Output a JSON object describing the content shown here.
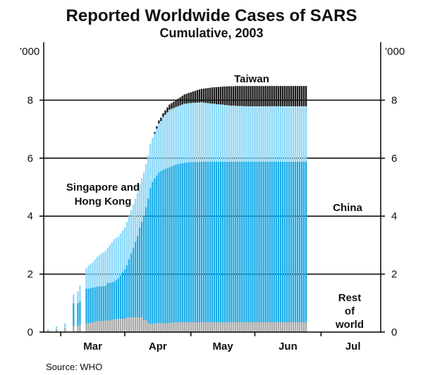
{
  "chart_data": {
    "type": "bar",
    "stacked": true,
    "title": "Reported Worldwide Cases of SARS",
    "subtitle": "Cumulative, 2003",
    "unit_left": "’000",
    "unit_right": "’000",
    "ylim": [
      0,
      10
    ],
    "yticks": [
      0,
      2,
      4,
      6,
      8
    ],
    "ytick_labels": [
      "0",
      "2",
      "4",
      "6",
      "8"
    ],
    "grid": true,
    "x_month_labels": [
      "Mar",
      "Apr",
      "May",
      "Jun",
      "Jul"
    ],
    "x_month_day_index": [
      0,
      30,
      61,
      91,
      122
    ],
    "source": "Source: WHO",
    "colors": {
      "rest_of_world": "#aaaaaa",
      "china": "#1aaae6",
      "singapore_hong_kong": "#8ed8f8",
      "taiwan": "#1a1a1a",
      "axis": "#000000"
    },
    "annotations": {
      "taiwan": "Taiwan",
      "singapore_line1": "Singapore and",
      "singapore_line2": "Hong Kong",
      "china": "China",
      "rest_line1": "Rest",
      "rest_line2": "of",
      "rest_line3": "world"
    },
    "series_names": [
      "Rest of world",
      "China",
      "Singapore and Hong Kong",
      "Taiwan"
    ],
    "days": [
      -6,
      -2,
      2,
      6,
      8,
      9,
      12,
      13,
      14,
      15,
      16,
      17,
      18,
      19,
      20,
      21,
      22,
      23,
      24,
      25,
      26,
      27,
      28,
      29,
      30,
      31,
      32,
      33,
      34,
      35,
      36,
      37,
      38,
      39,
      40,
      41,
      42,
      43,
      44,
      45,
      46,
      47,
      48,
      49,
      50,
      51,
      52,
      53,
      54,
      55,
      56,
      57,
      58,
      59,
      60,
      61,
      62,
      63,
      64,
      65,
      66,
      67,
      68,
      69,
      70,
      71,
      72,
      73,
      74,
      75,
      76,
      77,
      78,
      79,
      80,
      81,
      82,
      83,
      84,
      85,
      86,
      87,
      88,
      89,
      90,
      91,
      92,
      93,
      94,
      95,
      96,
      97,
      98,
      99,
      100,
      101,
      102,
      103,
      104,
      105,
      106,
      107,
      108,
      109,
      110,
      111,
      112,
      113,
      114,
      115
    ],
    "totals": [
      0.1,
      0.2,
      0.3,
      1.3,
      1.4,
      1.6,
      2.2,
      2.3,
      2.35,
      2.4,
      2.5,
      2.6,
      2.65,
      2.7,
      2.75,
      2.8,
      2.9,
      3.0,
      3.1,
      3.2,
      3.25,
      3.3,
      3.4,
      3.5,
      3.6,
      3.8,
      4.0,
      4.2,
      4.4,
      4.6,
      4.8,
      5.1,
      5.3,
      5.5,
      5.8,
      6.1,
      6.5,
      6.7,
      6.9,
      7.1,
      7.3,
      7.4,
      7.55,
      7.65,
      7.75,
      7.85,
      7.9,
      7.95,
      8.0,
      8.05,
      8.1,
      8.15,
      8.2,
      8.22,
      8.25,
      8.27,
      8.3,
      8.32,
      8.35,
      8.37,
      8.39,
      8.4,
      8.41,
      8.42,
      8.43,
      8.44,
      8.45,
      8.45,
      8.46,
      8.46,
      8.47,
      8.47,
      8.48,
      8.48,
      8.48,
      8.48,
      8.49,
      8.49,
      8.49,
      8.49,
      8.49,
      8.49,
      8.49,
      8.49,
      8.49,
      8.49,
      8.49,
      8.49,
      8.49,
      8.49,
      8.49,
      8.49,
      8.49,
      8.49,
      8.49,
      8.49,
      8.49,
      8.49,
      8.49,
      8.49,
      8.49,
      8.49,
      8.49,
      8.49,
      8.49,
      8.49,
      8.49,
      8.49,
      8.49,
      8.49
    ],
    "china_cumulative": [
      0.0,
      0.0,
      0.0,
      0.8,
      0.8,
      0.8,
      1.2,
      1.2,
      1.2,
      1.2,
      1.2,
      1.2,
      1.2,
      1.2,
      1.2,
      1.2,
      1.3,
      1.3,
      1.3,
      1.3,
      1.35,
      1.4,
      1.5,
      1.6,
      1.7,
      1.8,
      2.0,
      2.2,
      2.4,
      2.6,
      2.8,
      3.1,
      3.3,
      3.6,
      3.9,
      4.3,
      4.7,
      4.9,
      5.0,
      5.1,
      5.2,
      5.25,
      5.3,
      5.33,
      5.36,
      5.38,
      5.4,
      5.42,
      5.44,
      5.46,
      5.48,
      5.49,
      5.5,
      5.51,
      5.52,
      5.52,
      5.53,
      5.53,
      5.53,
      5.53,
      5.54,
      5.54,
      5.54,
      5.54,
      5.54,
      5.54,
      5.54,
      5.54,
      5.54,
      5.54,
      5.54,
      5.54,
      5.54,
      5.54,
      5.54,
      5.54,
      5.54,
      5.54,
      5.54,
      5.54,
      5.54,
      5.54,
      5.54,
      5.54,
      5.54,
      5.54,
      5.54,
      5.54,
      5.54,
      5.54,
      5.54,
      5.54,
      5.54,
      5.54,
      5.54,
      5.54,
      5.54,
      5.54,
      5.54,
      5.54,
      5.54,
      5.54,
      5.54,
      5.54,
      5.54,
      5.54,
      5.54,
      5.54,
      5.54,
      5.54
    ],
    "singapore_hk_cumulative": [
      0.05,
      0.1,
      0.15,
      0.3,
      0.4,
      0.55,
      0.7,
      0.8,
      0.83,
      0.87,
      0.95,
      1.03,
      1.07,
      1.12,
      1.16,
      1.2,
      1.2,
      1.3,
      1.38,
      1.46,
      1.45,
      1.44,
      1.44,
      1.44,
      1.44,
      1.49,
      1.49,
      1.49,
      1.49,
      1.49,
      1.49,
      1.49,
      1.49,
      1.49,
      1.49,
      1.49,
      1.52,
      1.52,
      1.55,
      1.62,
      1.69,
      1.72,
      1.82,
      1.87,
      1.92,
      1.98,
      1.98,
      1.98,
      1.98,
      1.99,
      2.0,
      2.02,
      2.04,
      2.03,
      2.04,
      2.04,
      2.04,
      2.04,
      2.05,
      2.05,
      2.05,
      2.04,
      2.03,
      2.02,
      2.01,
      2.0,
      2.0,
      1.98,
      1.98,
      1.97,
      1.97,
      1.95,
      1.95,
      1.94,
      1.93,
      1.93,
      1.93,
      1.92,
      1.92,
      1.92,
      1.91,
      1.91,
      1.91,
      1.91,
      1.91,
      1.91,
      1.91,
      1.91,
      1.91,
      1.91,
      1.91,
      1.91,
      1.91,
      1.91,
      1.91,
      1.91,
      1.91,
      1.91,
      1.91,
      1.91,
      1.91,
      1.91,
      1.91,
      1.91,
      1.91,
      1.91,
      1.91,
      1.91,
      1.91,
      1.91
    ],
    "taiwan_cumulative": [
      0.0,
      0.0,
      0.0,
      0.0,
      0.0,
      0.0,
      0.0,
      0.0,
      0.0,
      0.0,
      0.0,
      0.0,
      0.0,
      0.0,
      0.0,
      0.0,
      0.0,
      0.0,
      0.0,
      0.0,
      0.0,
      0.0,
      0.0,
      0.0,
      0.0,
      0.0,
      0.0,
      0.0,
      0.0,
      0.0,
      0.0,
      0.0,
      0.0,
      0.0,
      0.0,
      0.0,
      0.0,
      0.0,
      0.05,
      0.08,
      0.1,
      0.12,
      0.13,
      0.15,
      0.17,
      0.18,
      0.2,
      0.22,
      0.24,
      0.26,
      0.28,
      0.3,
      0.32,
      0.34,
      0.35,
      0.37,
      0.39,
      0.41,
      0.43,
      0.45,
      0.46,
      0.48,
      0.5,
      0.52,
      0.54,
      0.56,
      0.57,
      0.59,
      0.6,
      0.61,
      0.62,
      0.64,
      0.65,
      0.66,
      0.67,
      0.67,
      0.68,
      0.69,
      0.69,
      0.69,
      0.7,
      0.7,
      0.7,
      0.7,
      0.7,
      0.7,
      0.7,
      0.7,
      0.7,
      0.7,
      0.7,
      0.7,
      0.7,
      0.7,
      0.7,
      0.7,
      0.7,
      0.7,
      0.7,
      0.7,
      0.7,
      0.7,
      0.7,
      0.7,
      0.7,
      0.7,
      0.7,
      0.7,
      0.7,
      0.7
    ]
  }
}
